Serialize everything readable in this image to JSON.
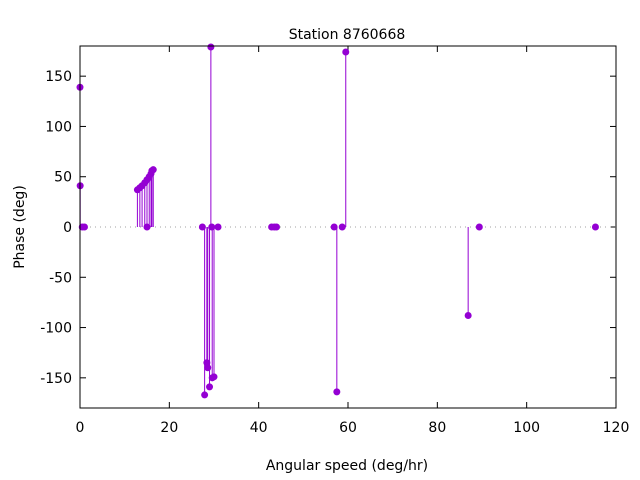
{
  "chart_data": {
    "type": "impulse",
    "title": "Station 8760668",
    "xlabel": "Angular speed (deg/hr)",
    "ylabel": "Phase (deg)",
    "xlim": [
      0,
      120
    ],
    "ylim": [
      -180,
      180
    ],
    "xticks": [
      0,
      20,
      40,
      60,
      80,
      100,
      120
    ],
    "yticks": [
      150,
      100,
      50,
      0,
      -50,
      -100,
      -150
    ],
    "color": "#9400d3",
    "zero_line": "dotted grey",
    "points": [
      [
        0,
        139
      ],
      [
        0.04,
        41
      ],
      [
        0.5,
        0
      ],
      [
        1.0,
        0
      ],
      [
        12.85,
        37
      ],
      [
        13.4,
        39
      ],
      [
        13.9,
        41
      ],
      [
        14.5,
        44
      ],
      [
        15.0,
        0
      ],
      [
        15.0,
        47
      ],
      [
        15.5,
        50
      ],
      [
        15.9,
        53
      ],
      [
        16.1,
        56
      ],
      [
        16.4,
        57
      ],
      [
        27.4,
        0
      ],
      [
        27.9,
        -167
      ],
      [
        28.4,
        -135
      ],
      [
        28.6,
        -140
      ],
      [
        29.0,
        -159
      ],
      [
        29.3,
        179
      ],
      [
        29.5,
        0
      ],
      [
        29.6,
        -150
      ],
      [
        30.0,
        -149
      ],
      [
        30.9,
        0
      ],
      [
        42.9,
        0
      ],
      [
        43.5,
        0
      ],
      [
        44.0,
        0
      ],
      [
        56.9,
        0
      ],
      [
        57.5,
        -164
      ],
      [
        58.7,
        0
      ],
      [
        59.5,
        174
      ],
      [
        86.9,
        -88
      ],
      [
        89.4,
        0
      ],
      [
        115.4,
        0
      ]
    ]
  }
}
